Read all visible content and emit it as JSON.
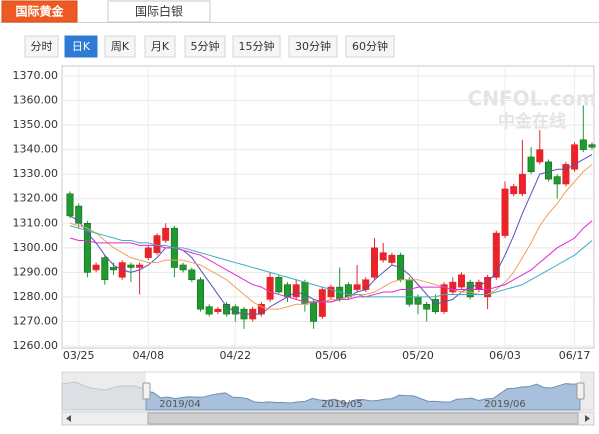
{
  "ui": {
    "tabs": [
      "国际黄金",
      "国际白银"
    ],
    "active_tab": 0,
    "periods": [
      "分时",
      "日K",
      "周K",
      "月K",
      "5分钟",
      "15分钟",
      "30分钟",
      "60分钟"
    ],
    "active_period": 1,
    "watermark": [
      "CNFOL.com",
      "中金在线"
    ]
  },
  "chart_data": {
    "type": "candlestick",
    "categories": [
      null,
      "03/25",
      null,
      null,
      null,
      null,
      null,
      null,
      null,
      "04/08",
      null,
      null,
      null,
      null,
      null,
      null,
      null,
      null,
      null,
      "04/22",
      null,
      null,
      null,
      null,
      null,
      null,
      null,
      null,
      null,
      null,
      "05/06",
      null,
      null,
      null,
      null,
      null,
      null,
      null,
      null,
      null,
      "05/20",
      null,
      null,
      null,
      null,
      null,
      null,
      null,
      null,
      null,
      "06/03",
      null,
      null,
      null,
      null,
      null,
      null,
      null,
      "06/17",
      null,
      null
    ],
    "open": [
      1322,
      1317,
      1310,
      1291,
      1296,
      1292,
      1288,
      1293,
      1292,
      1296,
      1298,
      1303,
      1308,
      1293,
      1291,
      1287,
      1276,
      1274,
      1277,
      1276,
      1275,
      1271,
      1273,
      1279,
      1288,
      1285,
      1280,
      1286,
      1278,
      1272,
      1280,
      1284,
      1285,
      1283,
      1283,
      1288,
      1295,
      1294,
      1297,
      1287,
      1280,
      1277,
      1279,
      1274,
      1282,
      1284,
      1286,
      1283,
      1280,
      1288,
      1305,
      1322,
      1322,
      1337,
      1335,
      1335,
      1329,
      1326,
      1332,
      1344,
      1342
    ],
    "high": [
      1323,
      1318,
      1311,
      1294,
      1297,
      1294,
      1295,
      1294,
      1294,
      1301,
      1306,
      1310,
      1309,
      1294,
      1292,
      1288,
      1277,
      1276,
      1278,
      1277,
      1276,
      1276,
      1278,
      1290,
      1289,
      1286,
      1287,
      1287,
      1279,
      1284,
      1285,
      1292,
      1286,
      1293,
      1288,
      1304,
      1302,
      1298,
      1298,
      1288,
      1281,
      1278,
      1281,
      1286,
      1288,
      1290,
      1287,
      1287,
      1289,
      1307,
      1327,
      1326,
      1344,
      1341,
      1348,
      1336,
      1330,
      1335,
      1343,
      1358,
      1343
    ],
    "low": [
      1312,
      1308,
      1288,
      1290,
      1285,
      1289,
      1287,
      1286,
      1281,
      1295,
      1297,
      1302,
      1288,
      1290,
      1286,
      1274,
      1272,
      1273,
      1272,
      1270,
      1267,
      1270,
      1272,
      1278,
      1281,
      1278,
      1279,
      1274,
      1267,
      1271,
      1279,
      1278,
      1279,
      1282,
      1282,
      1287,
      1294,
      1293,
      1286,
      1276,
      1273,
      1270,
      1273,
      1273,
      1281,
      1283,
      1279,
      1282,
      1275,
      1287,
      1304,
      1321,
      1321,
      1330,
      1334,
      1327,
      1320,
      1325,
      1331,
      1339,
      1340
    ],
    "close": [
      1313,
      1310,
      1290,
      1293,
      1287,
      1291,
      1294,
      1292,
      1293,
      1300,
      1305,
      1308,
      1292,
      1291,
      1287,
      1275,
      1273,
      1275,
      1273,
      1273,
      1271,
      1275,
      1277,
      1288,
      1282,
      1280,
      1285,
      1277,
      1270,
      1283,
      1284,
      1279,
      1280,
      1285,
      1287,
      1300,
      1298,
      1297,
      1287,
      1277,
      1277,
      1275,
      1274,
      1285,
      1286,
      1289,
      1280,
      1286,
      1288,
      1306,
      1324,
      1325,
      1330,
      1331,
      1340,
      1328,
      1326,
      1334,
      1342,
      1340,
      1341
    ],
    "up_color": "#e8232a",
    "down_color": "#1f9a2e",
    "moving_averages": [
      {
        "color": "#5a4fb0",
        "values": [
          1313,
          1311,
          1306,
          1302,
          1297,
          1293,
          1291,
          1290,
          1291,
          1293,
          1296,
          1300,
          1300,
          1299,
          1296,
          1291,
          1286,
          1281,
          1276,
          1274,
          1273,
          1273,
          1273,
          1276,
          1278,
          1280,
          1282,
          1281,
          1279,
          1278,
          1278,
          1279,
          1280,
          1282,
          1283,
          1287,
          1290,
          1293,
          1292,
          1289,
          1285,
          1281,
          1277,
          1278,
          1279,
          1282,
          1284,
          1285,
          1286,
          1290,
          1297,
          1305,
          1314,
          1322,
          1330,
          1331,
          1332,
          1332,
          1334,
          1336,
          1338
        ]
      },
      {
        "color": "#f0a05a",
        "values": [
          1310,
          1309,
          1308,
          1306,
          1303,
          1300,
          1298,
          1296,
          1295,
          1294,
          1294,
          1295,
          1295,
          1295,
          1294,
          1293,
          1291,
          1289,
          1287,
          1284,
          1281,
          1278,
          1276,
          1275,
          1275,
          1276,
          1277,
          1277,
          1278,
          1278,
          1279,
          1279,
          1280,
          1281,
          1281,
          1282,
          1284,
          1286,
          1287,
          1287,
          1287,
          1286,
          1285,
          1284,
          1283,
          1282,
          1282,
          1281,
          1281,
          1283,
          1286,
          1290,
          1296,
          1302,
          1309,
          1314,
          1318,
          1323,
          1327,
          1331,
          1334
        ]
      },
      {
        "color": "#e02ad8",
        "values": [
          1304,
          1303,
          1303,
          1302,
          1302,
          1302,
          1302,
          1302,
          1301,
          1301,
          1301,
          1300,
          1300,
          1299,
          1298,
          1297,
          1295,
          1293,
          1291,
          1289,
          1287,
          1285,
          1284,
          1282,
          1281,
          1280,
          1279,
          1278,
          1278,
          1278,
          1278,
          1279,
          1279,
          1280,
          1280,
          1281,
          1282,
          1282,
          1283,
          1283,
          1284,
          1284,
          1284,
          1284,
          1283,
          1283,
          1283,
          1283,
          1283,
          1284,
          1285,
          1287,
          1289,
          1291,
          1294,
          1297,
          1300,
          1302,
          1304,
          1308,
          1311
        ]
      },
      {
        "color": "#3eaec0",
        "values": [
          1309,
          1308,
          1307,
          1306,
          1305,
          1304,
          1303,
          1303,
          1302,
          1302,
          1301,
          1301,
          1300,
          1300,
          1299,
          1298,
          1297,
          1296,
          1295,
          1294,
          1293,
          1292,
          1291,
          1290,
          1289,
          1288,
          1287,
          1286,
          1285,
          1284,
          1283,
          1282,
          1281,
          1281,
          1280,
          1280,
          1280,
          1280,
          1280,
          1280,
          1280,
          1280,
          1280,
          1281,
          1281,
          1281,
          1281,
          1281,
          1281,
          1282,
          1283,
          1284,
          1285,
          1287,
          1289,
          1291,
          1293,
          1295,
          1297,
          1300,
          1303
        ]
      }
    ],
    "ylim": [
      1260,
      1370
    ],
    "yticks": [
      {
        "value": 1260,
        "label": "1260.00"
      },
      {
        "value": 1270,
        "label": "1270.00"
      },
      {
        "value": 1280,
        "label": "1280.00"
      },
      {
        "value": 1290,
        "label": "1290.00"
      },
      {
        "value": 1300,
        "label": "1300.00"
      },
      {
        "value": 1310,
        "label": "1310.00"
      },
      {
        "value": 1320,
        "label": "1320.00"
      },
      {
        "value": 1330,
        "label": "1330.00"
      },
      {
        "value": 1340,
        "label": "1340.00"
      },
      {
        "value": 1350,
        "label": "1350.00"
      },
      {
        "value": 1360,
        "label": "1360.00"
      },
      {
        "value": 1370,
        "label": "1370.00"
      }
    ],
    "grid": true,
    "navigator_labels": [
      "2019/04",
      "2019/05",
      "2019/06"
    ]
  }
}
